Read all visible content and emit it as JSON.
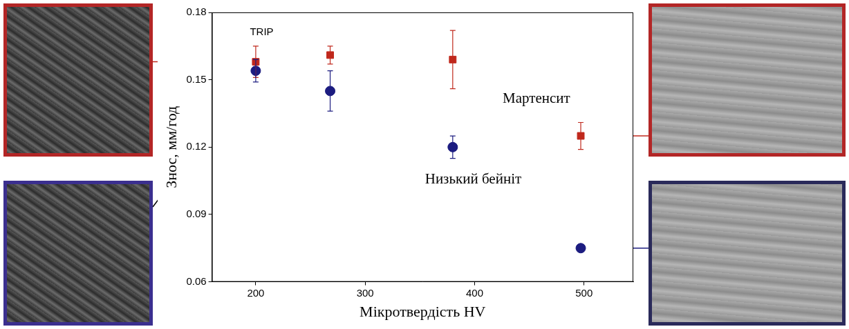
{
  "chart_data": {
    "type": "scatter",
    "x_label": "Мікротвердість HV",
    "y_label": "Знос, мм/год",
    "annotations": [
      "TRIP",
      "Мартенсит",
      "Низький бейніт"
    ],
    "x": [
      200,
      268,
      380,
      497
    ],
    "series": [
      {
        "color": "#c0281c",
        "marker": "square",
        "values": [
          0.158,
          0.161,
          0.159,
          0.125
        ],
        "errors": [
          0.007,
          0.004,
          0.013,
          0.006
        ]
      },
      {
        "color": "#1c1c80",
        "marker": "circle",
        "values": [
          0.154,
          0.145,
          0.12,
          0.075
        ],
        "errors": [
          0.005,
          0.009,
          0.005,
          0.001
        ]
      }
    ],
    "xlim": [
      160,
      545
    ],
    "xticks": [
      200,
      300,
      400,
      500
    ],
    "ylim": [
      0.06,
      0.18
    ],
    "yticks": [
      0.06,
      0.09,
      0.12,
      0.15,
      0.18
    ],
    "grid": false
  }
}
